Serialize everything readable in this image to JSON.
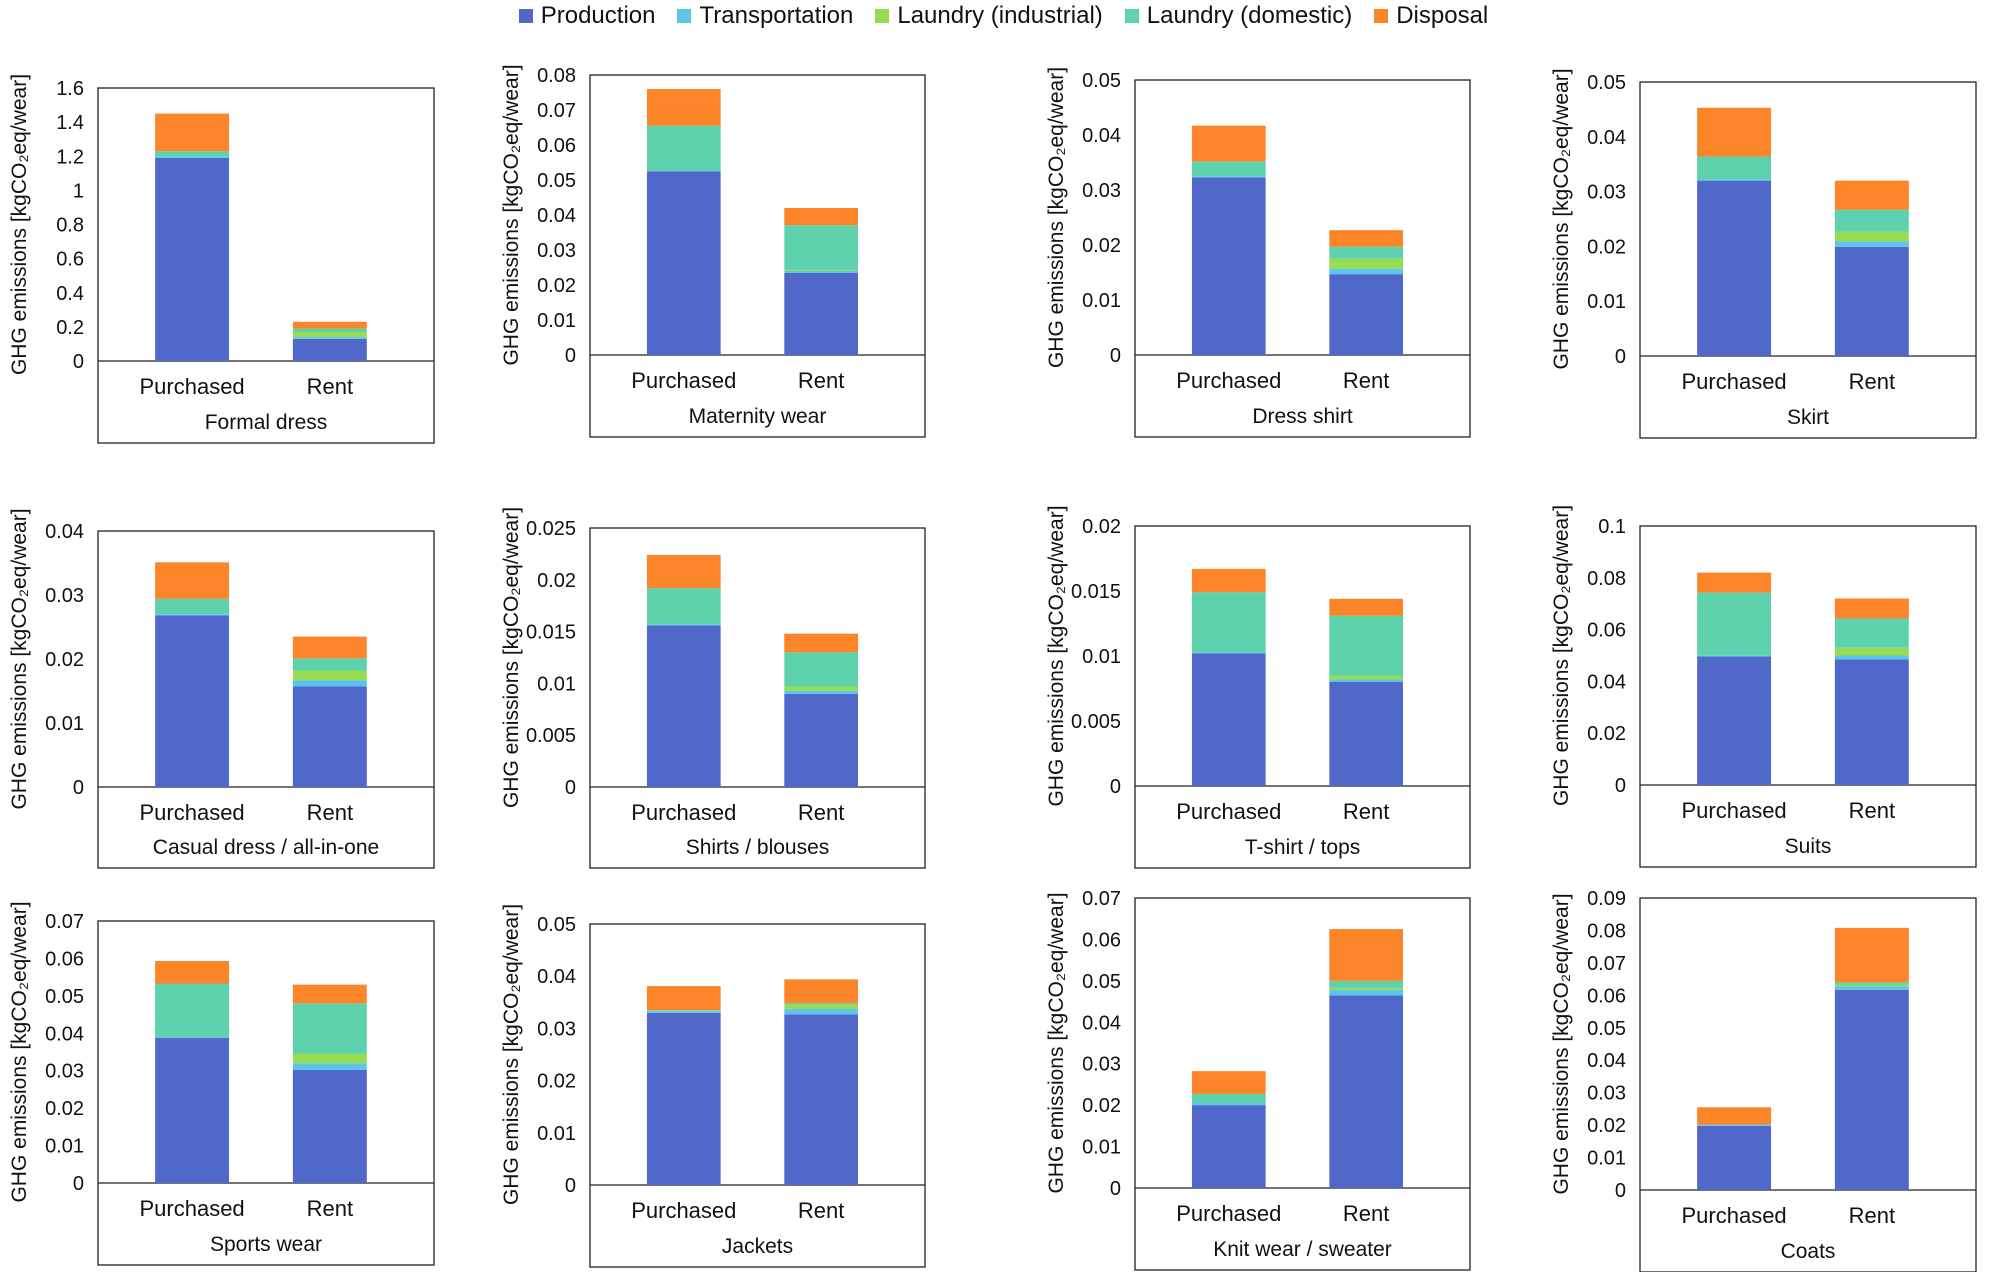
{
  "legend": {
    "items": [
      {
        "label": "Production",
        "color": "#4f68c9"
      },
      {
        "label": "Transportation",
        "color": "#5cc5eb"
      },
      {
        "label": "Laundry (industrial)",
        "color": "#97dd52"
      },
      {
        "label": "Laundry (domestic)",
        "color": "#5ed1ad"
      },
      {
        "label": "Disposal",
        "color": "#fb8528"
      }
    ]
  },
  "ylabel": "GHG emissions [kgCO₂eq/wear]",
  "categories": [
    "Purchased",
    "Rent"
  ],
  "chart_data": [
    {
      "type": "bar",
      "stacked": true,
      "title": "Formal dress",
      "ylabel": "GHG emissions [kgCO₂eq/wear]",
      "ylim": [
        0,
        1.6
      ],
      "yticks": [
        "1.6",
        "1.4",
        "1.2",
        "1",
        "0.8",
        "0.6",
        "0.4",
        "0.2",
        "0"
      ],
      "categories": [
        "Purchased",
        "Rent"
      ],
      "series": [
        {
          "name": "Production",
          "values": [
            1.19,
            0.13
          ]
        },
        {
          "name": "Transportation",
          "values": [
            0.01,
            0.01
          ]
        },
        {
          "name": "Laundry (industrial)",
          "values": [
            0,
            0.03
          ]
        },
        {
          "name": "Laundry (domestic)",
          "values": [
            0.03,
            0.02
          ]
        },
        {
          "name": "Disposal",
          "values": [
            0.22,
            0.04
          ]
        }
      ]
    },
    {
      "type": "bar",
      "stacked": true,
      "title": "Maternity wear",
      "ylabel": "GHG emissions [kgCO₂eq/wear]",
      "ylim": [
        0,
        0.08
      ],
      "yticks": [
        "0.08",
        "0.07",
        "0.06",
        "0.05",
        "0.04",
        "0.03",
        "0.02",
        "0.01",
        "0"
      ],
      "categories": [
        "Purchased",
        "Rent"
      ],
      "series": [
        {
          "name": "Production",
          "values": [
            0.0525,
            0.0235
          ]
        },
        {
          "name": "Transportation",
          "values": [
            0.0002,
            0.0005
          ]
        },
        {
          "name": "Laundry (industrial)",
          "values": [
            0,
            0.0003
          ]
        },
        {
          "name": "Laundry (domestic)",
          "values": [
            0.0128,
            0.0128
          ]
        },
        {
          "name": "Disposal",
          "values": [
            0.0105,
            0.0049
          ]
        }
      ]
    },
    {
      "type": "bar",
      "stacked": true,
      "title": "Dress shirt",
      "ylabel": "GHG emissions [kgCO₂eq/wear]",
      "ylim": [
        0,
        0.05
      ],
      "yticks": [
        "0.05",
        "0.04",
        "0.03",
        "0.02",
        "0.01",
        "0"
      ],
      "categories": [
        "Purchased",
        "Rent"
      ],
      "series": [
        {
          "name": "Production",
          "values": [
            0.0323,
            0.0147
          ]
        },
        {
          "name": "Transportation",
          "values": [
            0.0002,
            0.001
          ]
        },
        {
          "name": "Laundry (industrial)",
          "values": [
            0,
            0.0018
          ]
        },
        {
          "name": "Laundry (domestic)",
          "values": [
            0.0027,
            0.0022
          ]
        },
        {
          "name": "Disposal",
          "values": [
            0.0065,
            0.003
          ]
        }
      ]
    },
    {
      "type": "bar",
      "stacked": true,
      "title": "Skirt",
      "ylabel": "GHG emissions [kgCO₂eq/wear]",
      "ylim": [
        0,
        0.05
      ],
      "yticks": [
        "0.05",
        "0.04",
        "0.03",
        "0.02",
        "0.01",
        "0"
      ],
      "categories": [
        "Purchased",
        "Rent"
      ],
      "series": [
        {
          "name": "Production",
          "values": [
            0.032,
            0.0199
          ]
        },
        {
          "name": "Transportation",
          "values": [
            0.0002,
            0.001
          ]
        },
        {
          "name": "Laundry (industrial)",
          "values": [
            0,
            0.0018
          ]
        },
        {
          "name": "Laundry (domestic)",
          "values": [
            0.0042,
            0.004
          ]
        },
        {
          "name": "Disposal",
          "values": [
            0.0089,
            0.0053
          ]
        }
      ]
    },
    {
      "type": "bar",
      "stacked": true,
      "title": "Casual dress / all-in-one",
      "ylabel": "GHG emissions [kgCO₂eq/wear]",
      "ylim": [
        0,
        0.04
      ],
      "yticks": [
        "0.04",
        "0.03",
        "0.02",
        "0.01",
        "0"
      ],
      "categories": [
        "Purchased",
        "Rent"
      ],
      "series": [
        {
          "name": "Production",
          "values": [
            0.0268,
            0.0157
          ]
        },
        {
          "name": "Transportation",
          "values": [
            0.0002,
            0.001
          ]
        },
        {
          "name": "Laundry (industrial)",
          "values": [
            0,
            0.0015
          ]
        },
        {
          "name": "Laundry (domestic)",
          "values": [
            0.0024,
            0.0019
          ]
        },
        {
          "name": "Disposal",
          "values": [
            0.0057,
            0.0034
          ]
        }
      ]
    },
    {
      "type": "bar",
      "stacked": true,
      "title": "Shirts / blouses",
      "ylabel": "GHG emissions [kgCO₂eq/wear]",
      "ylim": [
        0,
        0.025
      ],
      "yticks": [
        "0.025",
        "0.02",
        "0.015",
        "0.01",
        "0.005",
        "0"
      ],
      "categories": [
        "Purchased",
        "Rent"
      ],
      "series": [
        {
          "name": "Production",
          "values": [
            0.0156,
            0.009
          ]
        },
        {
          "name": "Transportation",
          "values": [
            0.0001,
            0.0003
          ]
        },
        {
          "name": "Laundry (industrial)",
          "values": [
            0,
            0.0004
          ]
        },
        {
          "name": "Laundry (domestic)",
          "values": [
            0.0035,
            0.0033
          ]
        },
        {
          "name": "Disposal",
          "values": [
            0.0032,
            0.0018
          ]
        }
      ]
    },
    {
      "type": "bar",
      "stacked": true,
      "title": "T-shirt / tops",
      "ylabel": "GHG emissions [kgCO₂eq/wear]",
      "ylim": [
        0,
        0.02
      ],
      "yticks": [
        "0.02",
        "0.015",
        "0.01",
        "0.005",
        "0"
      ],
      "categories": [
        "Purchased",
        "Rent"
      ],
      "series": [
        {
          "name": "Production",
          "values": [
            0.0102,
            0.008
          ]
        },
        {
          "name": "Transportation",
          "values": [
            0.0001,
            0.0002
          ]
        },
        {
          "name": "Laundry (industrial)",
          "values": [
            0,
            0.0003
          ]
        },
        {
          "name": "Laundry (domestic)",
          "values": [
            0.0046,
            0.0046
          ]
        },
        {
          "name": "Disposal",
          "values": [
            0.0018,
            0.0013
          ]
        }
      ]
    },
    {
      "type": "bar",
      "stacked": true,
      "title": "Suits",
      "ylabel": "GHG emissions [kgCO₂eq/wear]",
      "ylim": [
        0,
        0.1
      ],
      "yticks": [
        "0.1",
        "0.08",
        "0.06",
        "0.04",
        "0.02",
        "0"
      ],
      "categories": [
        "Purchased",
        "Rent"
      ],
      "series": [
        {
          "name": "Production",
          "values": [
            0.0496,
            0.0485
          ]
        },
        {
          "name": "Transportation",
          "values": [
            0.0003,
            0.0015
          ]
        },
        {
          "name": "Laundry (industrial)",
          "values": [
            0,
            0.003
          ]
        },
        {
          "name": "Laundry (domestic)",
          "values": [
            0.0244,
            0.0113
          ]
        },
        {
          "name": "Disposal",
          "values": [
            0.0077,
            0.0077
          ]
        }
      ]
    },
    {
      "type": "bar",
      "stacked": true,
      "title": "Sports wear",
      "ylabel": "GHG emissions [kgCO₂eq/wear]",
      "ylim": [
        0,
        0.07
      ],
      "yticks": [
        "0.07",
        "0.06",
        "0.05",
        "0.04",
        "0.03",
        "0.02",
        "0.01",
        "0"
      ],
      "categories": [
        "Purchased",
        "Rent"
      ],
      "series": [
        {
          "name": "Production",
          "values": [
            0.0388,
            0.0302
          ]
        },
        {
          "name": "Transportation",
          "values": [
            0.0002,
            0.0018
          ]
        },
        {
          "name": "Laundry (industrial)",
          "values": [
            0,
            0.0025
          ]
        },
        {
          "name": "Laundry (domestic)",
          "values": [
            0.0143,
            0.0135
          ]
        },
        {
          "name": "Disposal",
          "values": [
            0.006,
            0.005
          ]
        }
      ]
    },
    {
      "type": "bar",
      "stacked": true,
      "title": "Jackets",
      "ylabel": "GHG emissions [kgCO₂eq/wear]",
      "ylim": [
        0,
        0.05
      ],
      "yticks": [
        "0.05",
        "0.04",
        "0.03",
        "0.02",
        "0.01",
        "0"
      ],
      "categories": [
        "Purchased",
        "Rent"
      ],
      "series": [
        {
          "name": "Production",
          "values": [
            0.033,
            0.0327
          ]
        },
        {
          "name": "Transportation",
          "values": [
            0.0002,
            0.001
          ]
        },
        {
          "name": "Laundry (industrial)",
          "values": [
            0,
            0.0008
          ]
        },
        {
          "name": "Laundry (domestic)",
          "values": [
            0.0003,
            0.0003
          ]
        },
        {
          "name": "Disposal",
          "values": [
            0.0046,
            0.0046
          ]
        }
      ]
    },
    {
      "type": "bar",
      "stacked": true,
      "title": "Knit wear / sweater",
      "ylabel": "GHG emissions [kgCO₂eq/wear]",
      "ylim": [
        0,
        0.07
      ],
      "yticks": [
        "0.07",
        "0.06",
        "0.05",
        "0.04",
        "0.03",
        "0.02",
        "0.01",
        "0"
      ],
      "categories": [
        "Purchased",
        "Rent"
      ],
      "series": [
        {
          "name": "Production",
          "values": [
            0.02,
            0.0465
          ]
        },
        {
          "name": "Transportation",
          "values": [
            0.0005,
            0.0013
          ]
        },
        {
          "name": "Laundry (industrial)",
          "values": [
            0,
            0.0005
          ]
        },
        {
          "name": "Laundry (domestic)",
          "values": [
            0.0022,
            0.0017
          ]
        },
        {
          "name": "Disposal",
          "values": [
            0.0055,
            0.0125
          ]
        }
      ]
    },
    {
      "type": "bar",
      "stacked": true,
      "title": "Coats",
      "ylabel": "GHG emissions [kgCO₂eq/wear]",
      "ylim": [
        0,
        0.09
      ],
      "yticks": [
        "0.09",
        "0.08",
        "0.07",
        "0.06",
        "0.05",
        "0.04",
        "0.03",
        "0.02",
        "0.01",
        "0"
      ],
      "categories": [
        "Purchased",
        "Rent"
      ],
      "series": [
        {
          "name": "Production",
          "values": [
            0.0198,
            0.0617
          ]
        },
        {
          "name": "Transportation",
          "values": [
            0.0002,
            0.001
          ]
        },
        {
          "name": "Laundry (industrial)",
          "values": [
            0,
            0.0005
          ]
        },
        {
          "name": "Laundry (domestic)",
          "values": [
            0.0002,
            0.0008
          ]
        },
        {
          "name": "Disposal",
          "values": [
            0.0053,
            0.0168
          ]
        }
      ]
    }
  ]
}
